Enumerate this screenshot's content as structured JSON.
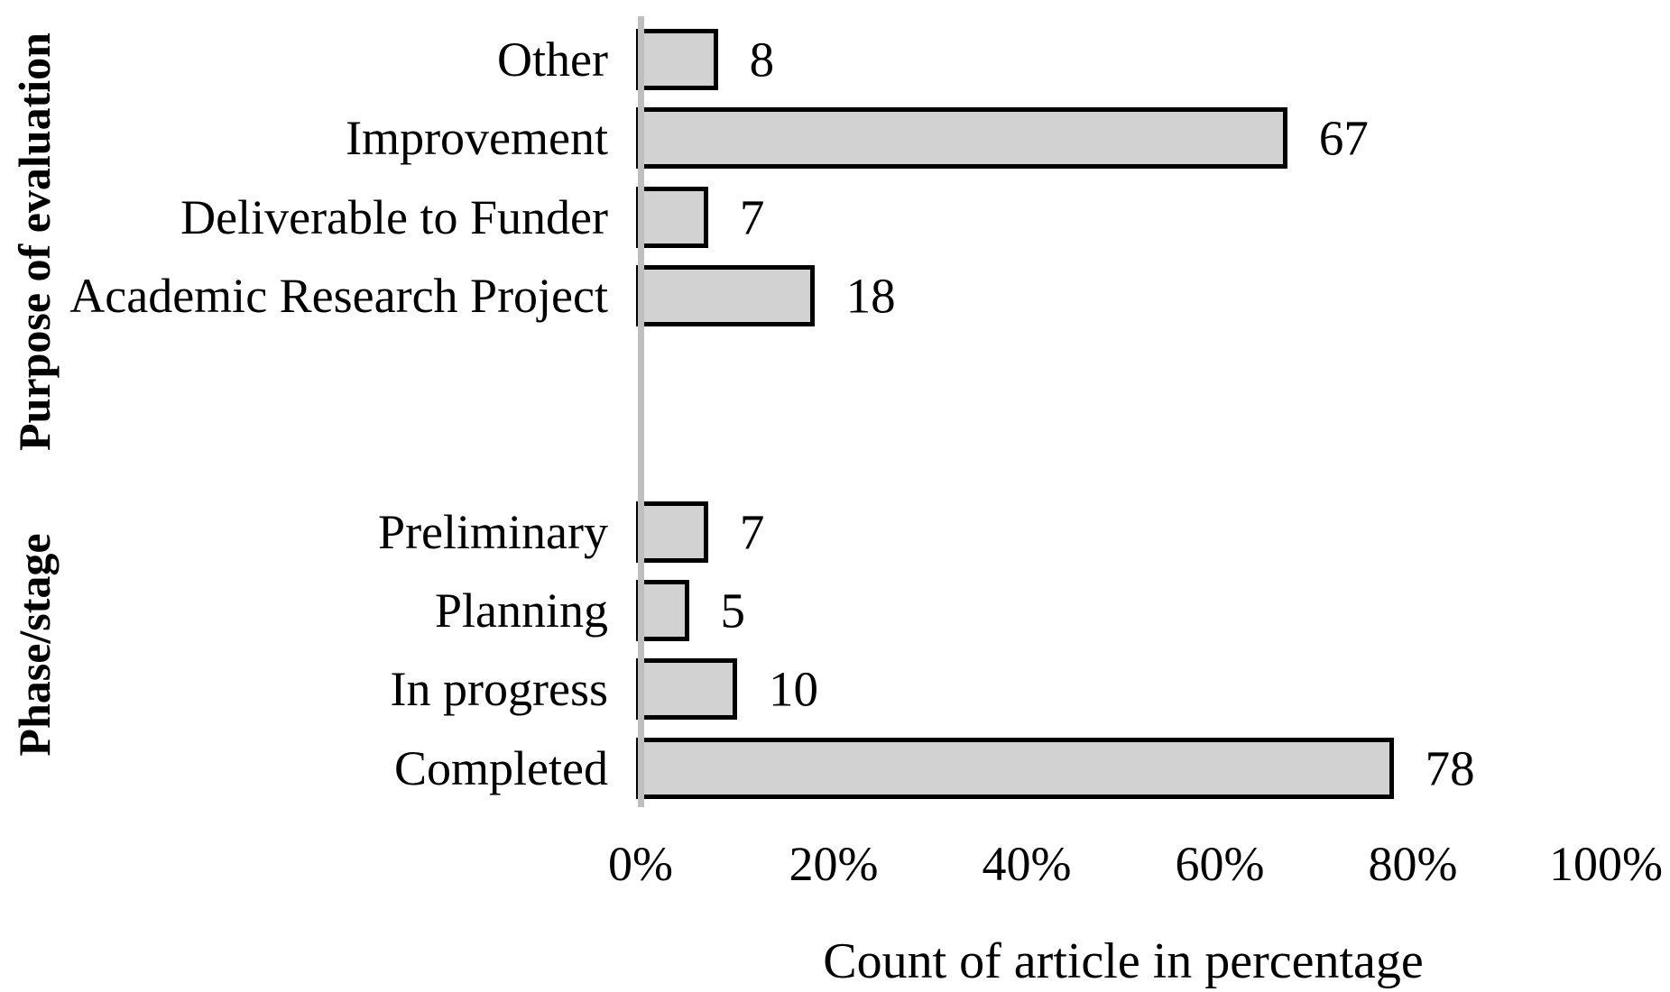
{
  "chart_data": {
    "type": "bar",
    "orientation": "horizontal",
    "title": "",
    "xlabel": "Count of article in percentage",
    "xlim": [
      0,
      100
    ],
    "x_ticks": [
      "0%",
      "20%",
      "40%",
      "60%",
      "80%",
      "100%"
    ],
    "x_tick_values": [
      0,
      20,
      40,
      60,
      80,
      100
    ],
    "grid": false,
    "value_labels": true,
    "groups": [
      {
        "label": "Purpose of evaluation",
        "categories": [
          "Other",
          "Improvement",
          "Deliverable to Funder",
          "Academic Research Project"
        ],
        "values": [
          8,
          67,
          7,
          18
        ]
      },
      {
        "label": "Phase/stage",
        "categories": [
          "Preliminary",
          "Planning",
          "In progress",
          "Completed"
        ],
        "values": [
          7,
          5,
          10,
          78
        ]
      }
    ],
    "colors": {
      "bar_fill": "#d2d2d2",
      "bar_border": "#000000",
      "axis_line": "#bfbfbf",
      "text": "#000000"
    }
  }
}
